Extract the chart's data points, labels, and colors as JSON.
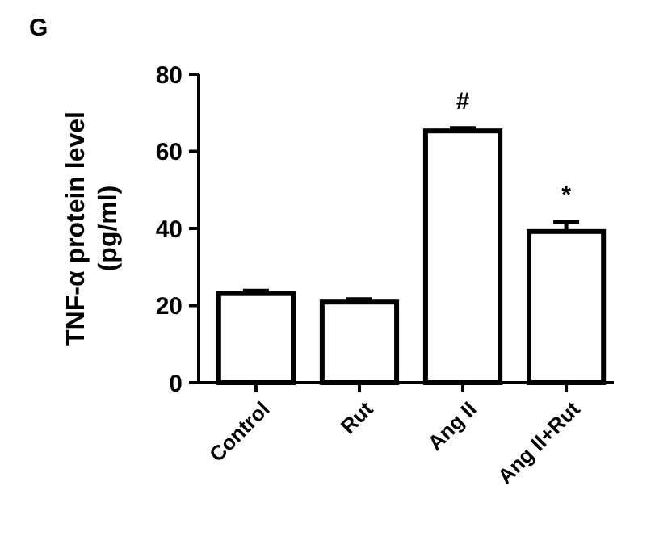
{
  "chart_data": {
    "type": "bar",
    "ylabel": "TNF-α protein level\n(pg/ml)",
    "categories": [
      "Control",
      "Rut",
      "Ang II",
      "Ang II+Rut"
    ],
    "values": [
      23.1,
      20.9,
      65.3,
      39.2
    ],
    "errors": [
      0.7,
      0.7,
      0.7,
      2.5
    ],
    "color": "#ffffff",
    "ylim": [
      0,
      80
    ],
    "yticks": [
      0,
      20,
      40,
      60,
      80
    ],
    "grid": false,
    "annotations": [
      "G",
      "#",
      "*"
    ]
  }
}
